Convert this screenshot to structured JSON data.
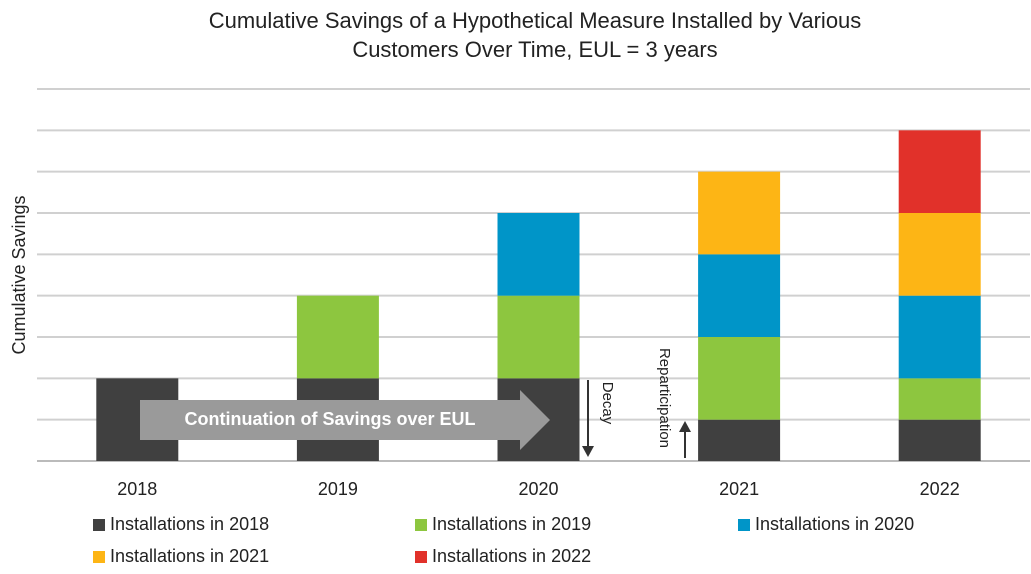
{
  "chart_data": {
    "type": "stacked-bar",
    "title": [
      "Cumulative Savings of a Hypothetical Measure Installed by Various",
      "Customers Over Time, EUL = 3 years"
    ],
    "y_label": "Cumulative Savings",
    "categories": [
      "2018",
      "2019",
      "2020",
      "2021",
      "2022"
    ],
    "series": [
      {
        "name": "Installations in 2018",
        "color": "#404040",
        "values": [
          2,
          2,
          2,
          1,
          1
        ]
      },
      {
        "name": "Installations in 2019",
        "color": "#8dc63f",
        "values": [
          0,
          2,
          2,
          2,
          1
        ]
      },
      {
        "name": "Installations in 2020",
        "color": "#0095c8",
        "values": [
          0,
          0,
          2,
          2,
          2
        ]
      },
      {
        "name": "Installations in 2021",
        "color": "#fdb515",
        "values": [
          0,
          0,
          0,
          2,
          2
        ]
      },
      {
        "name": "Installations in 2022",
        "color": "#e1312a",
        "values": [
          0,
          0,
          0,
          0,
          2
        ]
      }
    ],
    "ylim": [
      0,
      9
    ],
    "yticks": [
      0,
      1,
      2,
      3,
      4,
      5,
      6,
      7,
      8,
      9
    ],
    "grid": true,
    "annotations": [
      "Continuation of Savings over EUL",
      "Decay",
      "Reparticipation"
    ]
  }
}
